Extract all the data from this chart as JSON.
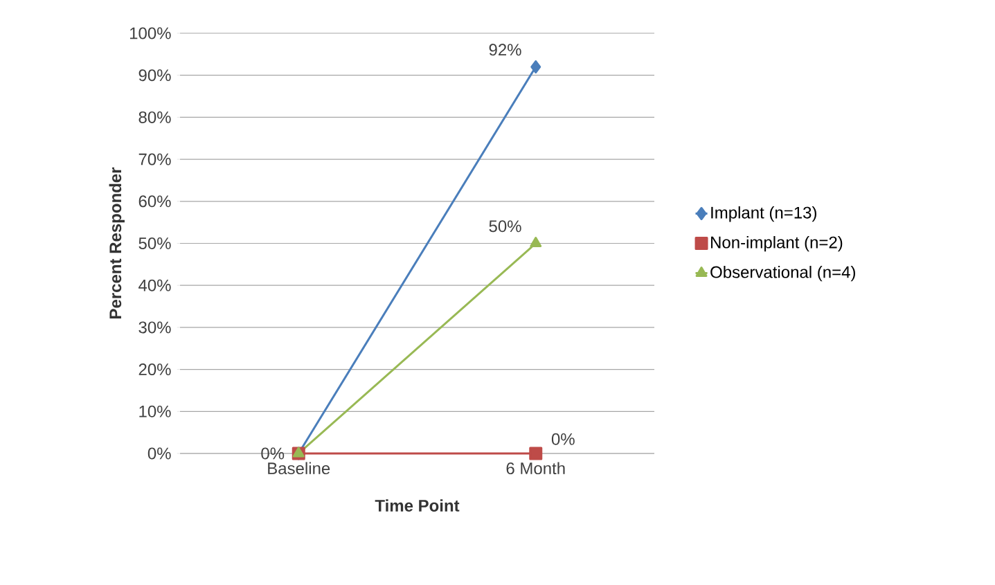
{
  "chart_data": {
    "type": "line",
    "xlabel": "Time Point",
    "ylabel": "Percent Responder",
    "categories": [
      "Baseline",
      "6 Month"
    ],
    "ylim": [
      0,
      100
    ],
    "yticks": [
      {
        "value": 0,
        "label": "0%"
      },
      {
        "value": 10,
        "label": "10%"
      },
      {
        "value": 20,
        "label": "20%"
      },
      {
        "value": 30,
        "label": "30%"
      },
      {
        "value": 40,
        "label": "40%"
      },
      {
        "value": 50,
        "label": "50%"
      },
      {
        "value": 60,
        "label": "60%"
      },
      {
        "value": 70,
        "label": "70%"
      },
      {
        "value": 80,
        "label": "80%"
      },
      {
        "value": 90,
        "label": "90%"
      },
      {
        "value": 100,
        "label": "100%"
      }
    ],
    "series": [
      {
        "name": "Implant (n=13)",
        "color": "#4a7ebb",
        "marker": "diamond",
        "values": [
          0,
          92
        ],
        "value_labels": [
          null,
          "92%"
        ]
      },
      {
        "name": "Non-implant (n=2)",
        "color": "#be4b48",
        "marker": "square",
        "values": [
          0,
          0
        ],
        "value_labels": [
          "0%",
          "0%"
        ]
      },
      {
        "name": "Observational (n=4)",
        "color": "#98b954",
        "marker": "triangle",
        "values": [
          0,
          50
        ],
        "value_labels": [
          null,
          "50%"
        ]
      }
    ],
    "grid": "y",
    "legend": "right"
  }
}
